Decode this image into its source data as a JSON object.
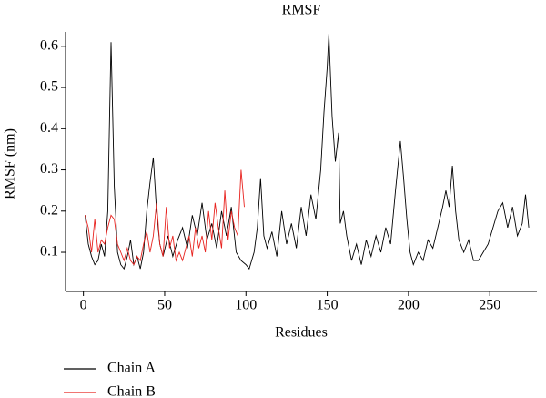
{
  "chart_data": {
    "type": "line",
    "title": "RMSF",
    "x_label": "Residues",
    "y_label": "RMSF (nm)",
    "xlim": [
      -11,
      279
    ],
    "ylim": [
      0.005,
      0.635
    ],
    "xticks": [
      0,
      50,
      100,
      150,
      200,
      250
    ],
    "yticks": [
      0.1,
      0.2,
      0.3,
      0.4,
      0.5,
      0.6
    ],
    "series": [
      {
        "name": "Chain A",
        "color": "#000000",
        "x": [
          1,
          3,
          5,
          7,
          9,
          11,
          13,
          15,
          17,
          19,
          21,
          23,
          25,
          27,
          29,
          31,
          33,
          35,
          37,
          39,
          41,
          43,
          45,
          47,
          49,
          52,
          55,
          58,
          61,
          64,
          67,
          70,
          73,
          76,
          79,
          82,
          85,
          88,
          91,
          94,
          97,
          100,
          102,
          105,
          107,
          109,
          111,
          113,
          116,
          119,
          122,
          125,
          128,
          131,
          134,
          137,
          140,
          143,
          146,
          148,
          150,
          151,
          153,
          155,
          157,
          158,
          160,
          162,
          165,
          168,
          171,
          174,
          177,
          180,
          183,
          186,
          189,
          192,
          195,
          197,
          199,
          201,
          203,
          206,
          209,
          212,
          215,
          218,
          221,
          223,
          225,
          227,
          229,
          231,
          234,
          237,
          240,
          243,
          246,
          249,
          252,
          255,
          258,
          261,
          264,
          267,
          270,
          272,
          274
        ],
        "values": [
          0.19,
          0.12,
          0.09,
          0.07,
          0.08,
          0.12,
          0.09,
          0.2,
          0.61,
          0.26,
          0.1,
          0.07,
          0.06,
          0.09,
          0.13,
          0.07,
          0.09,
          0.06,
          0.1,
          0.2,
          0.27,
          0.33,
          0.2,
          0.12,
          0.09,
          0.14,
          0.09,
          0.13,
          0.16,
          0.11,
          0.19,
          0.14,
          0.22,
          0.13,
          0.17,
          0.11,
          0.2,
          0.14,
          0.21,
          0.1,
          0.08,
          0.07,
          0.06,
          0.1,
          0.16,
          0.28,
          0.14,
          0.11,
          0.15,
          0.09,
          0.2,
          0.12,
          0.17,
          0.11,
          0.21,
          0.14,
          0.24,
          0.18,
          0.3,
          0.44,
          0.55,
          0.63,
          0.43,
          0.32,
          0.39,
          0.17,
          0.2,
          0.14,
          0.08,
          0.12,
          0.07,
          0.13,
          0.09,
          0.14,
          0.1,
          0.16,
          0.12,
          0.25,
          0.37,
          0.28,
          0.18,
          0.1,
          0.07,
          0.1,
          0.08,
          0.13,
          0.11,
          0.16,
          0.21,
          0.25,
          0.21,
          0.31,
          0.2,
          0.13,
          0.1,
          0.13,
          0.08,
          0.08,
          0.1,
          0.12,
          0.16,
          0.2,
          0.22,
          0.16,
          0.21,
          0.14,
          0.17,
          0.24,
          0.16
        ]
      },
      {
        "name": "Chain B",
        "color": "#e8231f",
        "x": [
          1,
          3,
          5,
          7,
          9,
          11,
          13,
          15,
          17,
          19,
          21,
          23,
          25,
          27,
          29,
          31,
          33,
          35,
          37,
          39,
          41,
          43,
          45,
          47,
          49,
          51,
          53,
          55,
          57,
          59,
          61,
          63,
          65,
          67,
          69,
          71,
          73,
          75,
          77,
          79,
          81,
          83,
          85,
          87,
          89,
          91,
          93,
          95,
          97,
          99
        ],
        "values": [
          0.19,
          0.16,
          0.1,
          0.18,
          0.1,
          0.13,
          0.12,
          0.16,
          0.19,
          0.18,
          0.12,
          0.1,
          0.08,
          0.11,
          0.08,
          0.07,
          0.09,
          0.08,
          0.12,
          0.15,
          0.1,
          0.14,
          0.22,
          0.12,
          0.09,
          0.21,
          0.11,
          0.14,
          0.08,
          0.1,
          0.08,
          0.11,
          0.14,
          0.09,
          0.16,
          0.11,
          0.14,
          0.1,
          0.2,
          0.13,
          0.22,
          0.16,
          0.11,
          0.25,
          0.13,
          0.2,
          0.16,
          0.14,
          0.3,
          0.21
        ]
      }
    ]
  }
}
